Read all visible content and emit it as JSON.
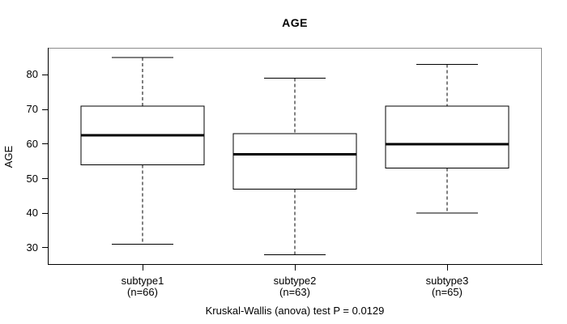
{
  "chart_data": {
    "type": "boxplot",
    "title": "AGE",
    "xlabel": "",
    "ylabel": "AGE",
    "caption": "Kruskal-Wallis (anova) test P = 0.0129",
    "y_axis": {
      "min": 25.3,
      "max": 87.6,
      "ticks": [
        30,
        40,
        50,
        60,
        70,
        80
      ]
    },
    "grid": false,
    "legend": "none",
    "groups": [
      {
        "label": "subtype1",
        "sublabel": "(n=66)",
        "n": 66,
        "whisker_low": 31,
        "q1": 54,
        "median": 62.5,
        "q3": 71,
        "whisker_high": 85
      },
      {
        "label": "subtype2",
        "sublabel": "(n=63)",
        "n": 63,
        "whisker_low": 28,
        "q1": 47,
        "median": 57,
        "q3": 63,
        "whisker_high": 79
      },
      {
        "label": "subtype3",
        "sublabel": "(n=65)",
        "n": 65,
        "whisker_low": 40,
        "q1": 53,
        "median": 60,
        "q3": 71,
        "whisker_high": 83
      }
    ],
    "colors": {
      "box_border": "#000000",
      "median": "#000000",
      "whisker": "#000000",
      "plot_border": "#8c8c8c",
      "background": "#ffffff",
      "text": "#000000"
    }
  }
}
